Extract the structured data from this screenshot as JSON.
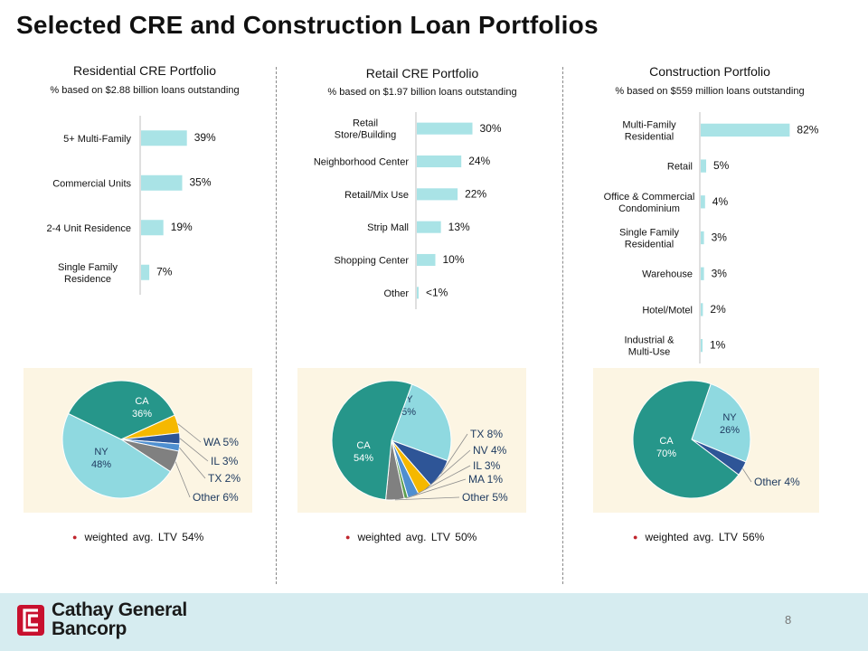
{
  "title": "Selected CRE and Construction Loan Portfolios",
  "page_number": "8",
  "logo": {
    "line1": "Cathay General",
    "line2": "Bancorp"
  },
  "colors": {
    "bar": "#a9e3e6",
    "pie_bg": "#fcf5e3",
    "footer": "#d6ecf0",
    "ca": "#26968a",
    "ny": "#8fd9e0",
    "yellow": "#f5b800",
    "blue": "#2e5597",
    "light_blue": "#4f8fd0",
    "gray": "#808080",
    "green": "#5b9e50",
    "bullet": "#c0262d",
    "logo_red": "#c8102e"
  },
  "chart_data": [
    {
      "type": "bar",
      "orientation": "horizontal",
      "title": "Residential CRE Portfolio",
      "subtitle": "% based on $2.88 billion loans outstanding",
      "categories": [
        "5+ Multi-Family",
        "Commercial Units",
        "2-4 Unit Residence",
        "Single Family Residence"
      ],
      "values": [
        39,
        35,
        19,
        7
      ],
      "labels": [
        "39%",
        "35%",
        "19%",
        "7%"
      ]
    },
    {
      "type": "bar",
      "orientation": "horizontal",
      "title": "Retail CRE Portfolio",
      "subtitle": "% based on $1.97 billion loans outstanding",
      "categories": [
        "Retail Store/Building",
        "Neighborhood Center",
        "Retail/Mix Use",
        "Strip Mall",
        "Shopping Center",
        "Other"
      ],
      "values": [
        30,
        24,
        22,
        13,
        10,
        0.5
      ],
      "labels": [
        "30%",
        "24%",
        "22%",
        "13%",
        "10%",
        "<1%"
      ]
    },
    {
      "type": "bar",
      "orientation": "horizontal",
      "title": "Construction Portfolio",
      "subtitle": "% based on $559 million loans outstanding",
      "categories": [
        "Multi-Family Residential",
        "Retail",
        "Office & Commercial Condominium",
        "Single Family Residential",
        "Warehouse",
        "Hotel/Motel",
        "Industrial & Multi-Use"
      ],
      "values": [
        82,
        5,
        4,
        3,
        3,
        2,
        1
      ],
      "labels": [
        "82%",
        "5%",
        "4%",
        "3%",
        "3%",
        "2%",
        "1%"
      ]
    },
    {
      "type": "pie",
      "note": "weighted avg. LTV 54%",
      "slices": [
        {
          "name": "CA",
          "value": 36,
          "label": "36%",
          "color": "#26968a"
        },
        {
          "name": "WA",
          "value": 5,
          "label": "5%",
          "color": "#f5b800"
        },
        {
          "name": "IL",
          "value": 3,
          "label": "3%",
          "color": "#2e5597"
        },
        {
          "name": "TX",
          "value": 2,
          "label": "2%",
          "color": "#4f8fd0"
        },
        {
          "name": "Other",
          "value": 6,
          "label": "6%",
          "color": "#808080"
        },
        {
          "name": "NY",
          "value": 48,
          "label": "48%",
          "color": "#8fd9e0"
        }
      ]
    },
    {
      "type": "pie",
      "note": "weighted avg. LTV 50%",
      "slices": [
        {
          "name": "NY",
          "value": 25,
          "label": "25%",
          "color": "#8fd9e0"
        },
        {
          "name": "TX",
          "value": 8,
          "label": "8%",
          "color": "#2e5597"
        },
        {
          "name": "NV",
          "value": 4,
          "label": "4%",
          "color": "#f5b800"
        },
        {
          "name": "IL",
          "value": 3,
          "label": "3%",
          "color": "#4f8fd0"
        },
        {
          "name": "MA",
          "value": 1,
          "label": "1%",
          "color": "#5b9e50"
        },
        {
          "name": "Other",
          "value": 5,
          "label": "5%",
          "color": "#808080"
        },
        {
          "name": "CA",
          "value": 54,
          "label": "54%",
          "color": "#26968a"
        }
      ]
    },
    {
      "type": "pie",
      "note": "weighted avg. LTV 56%",
      "slices": [
        {
          "name": "NY",
          "value": 26,
          "label": "26%",
          "color": "#8fd9e0"
        },
        {
          "name": "Other",
          "value": 4,
          "label": "4%",
          "color": "#2e5597"
        },
        {
          "name": "CA",
          "value": 70,
          "label": "70%",
          "color": "#26968a"
        }
      ]
    }
  ]
}
